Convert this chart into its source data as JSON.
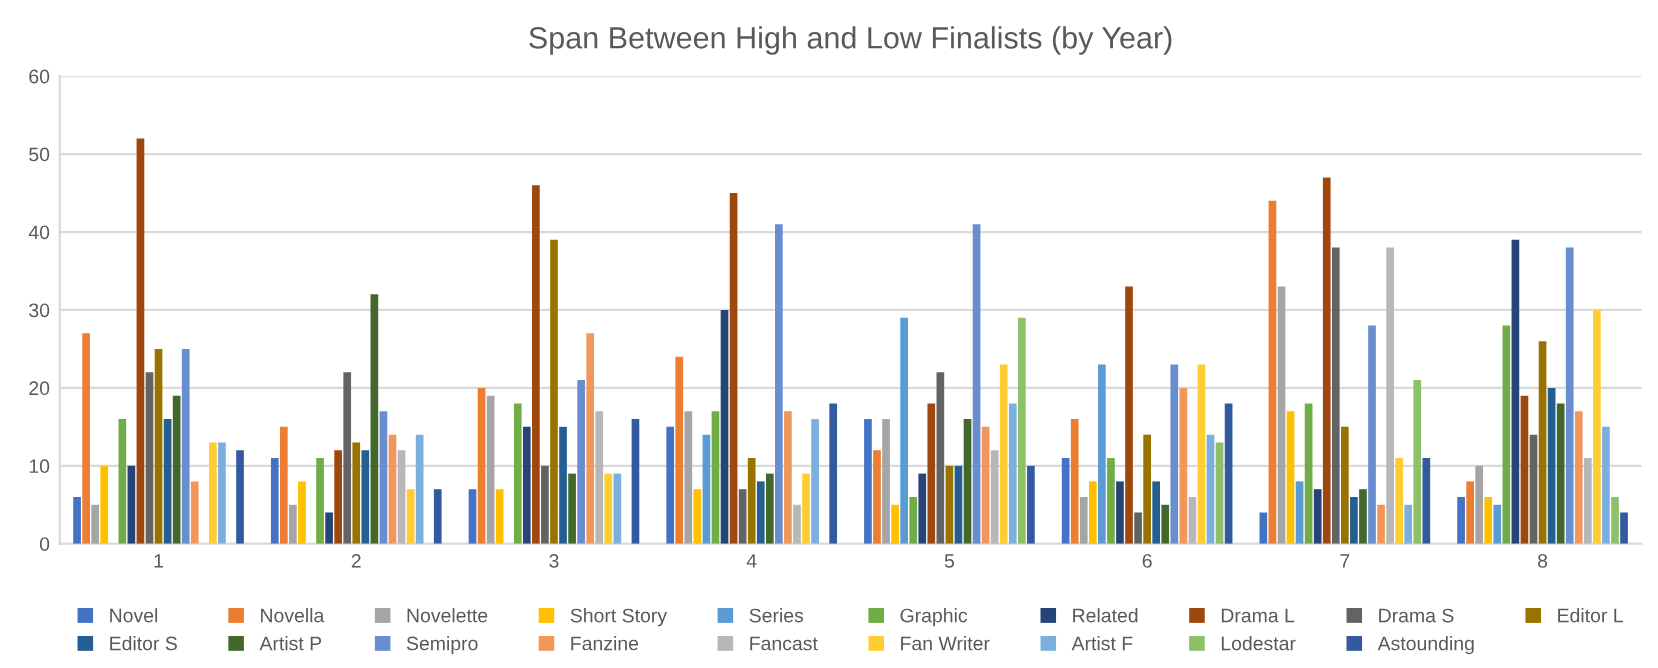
{
  "chart_data": {
    "type": "bar",
    "title": "Span Between High and Low Finalists (by Year)",
    "categories": [
      "1",
      "2",
      "3",
      "4",
      "5",
      "6",
      "7",
      "8"
    ],
    "ylim": [
      0,
      60
    ],
    "yticks": [
      0,
      10,
      20,
      30,
      40,
      50,
      60
    ],
    "grid": "y",
    "legend": "bottom",
    "series": [
      {
        "name": "Novel",
        "color": "#4472c4",
        "values": [
          6,
          11,
          7,
          15,
          16,
          11,
          4,
          6
        ]
      },
      {
        "name": "Novella",
        "color": "#ed7d31",
        "values": [
          27,
          15,
          20,
          24,
          12,
          16,
          44,
          8
        ]
      },
      {
        "name": "Novelette",
        "color": "#a5a5a5",
        "values": [
          5,
          5,
          19,
          17,
          16,
          6,
          33,
          10
        ]
      },
      {
        "name": "Short Story",
        "color": "#ffc000",
        "values": [
          10,
          8,
          7,
          7,
          5,
          8,
          17,
          6
        ]
      },
      {
        "name": "Series",
        "color": "#5b9bd5",
        "values": [
          null,
          null,
          null,
          14,
          29,
          23,
          8,
          5
        ]
      },
      {
        "name": "Graphic",
        "color": "#70ad47",
        "values": [
          16,
          11,
          18,
          17,
          6,
          11,
          18,
          28
        ]
      },
      {
        "name": "Related",
        "color": "#264478",
        "values": [
          10,
          4,
          15,
          30,
          9,
          8,
          7,
          39
        ]
      },
      {
        "name": "Drama L",
        "color": "#9e480e",
        "values": [
          52,
          12,
          46,
          45,
          18,
          33,
          47,
          19
        ]
      },
      {
        "name": "Drama S",
        "color": "#636363",
        "values": [
          22,
          22,
          10,
          7,
          22,
          4,
          38,
          14
        ]
      },
      {
        "name": "Editor L",
        "color": "#997300",
        "values": [
          25,
          13,
          39,
          11,
          10,
          14,
          15,
          26
        ]
      },
      {
        "name": "Editor S",
        "color": "#255e91",
        "values": [
          16,
          12,
          15,
          8,
          10,
          8,
          6,
          20
        ]
      },
      {
        "name": "Artist P",
        "color": "#43682b",
        "values": [
          19,
          32,
          9,
          9,
          16,
          5,
          7,
          18
        ]
      },
      {
        "name": "Semipro",
        "color": "#698ed0",
        "values": [
          25,
          17,
          21,
          41,
          41,
          23,
          28,
          38
        ]
      },
      {
        "name": "Fanzine",
        "color": "#f1975a",
        "values": [
          8,
          14,
          27,
          17,
          15,
          20,
          5,
          17
        ]
      },
      {
        "name": "Fancast",
        "color": "#b7b7b7",
        "values": [
          null,
          12,
          17,
          5,
          12,
          6,
          38,
          11
        ]
      },
      {
        "name": "Fan Writer",
        "color": "#ffcd33",
        "values": [
          13,
          7,
          9,
          9,
          23,
          23,
          11,
          30
        ]
      },
      {
        "name": "Artist F",
        "color": "#7cafdd",
        "values": [
          13,
          14,
          9,
          16,
          18,
          14,
          5,
          15
        ]
      },
      {
        "name": "Lodestar",
        "color": "#8cc168",
        "values": [
          null,
          null,
          null,
          null,
          29,
          13,
          21,
          6
        ]
      },
      {
        "name": "Astounding",
        "color": "#335aa1",
        "values": [
          12,
          7,
          16,
          18,
          10,
          18,
          11,
          4
        ]
      }
    ]
  }
}
